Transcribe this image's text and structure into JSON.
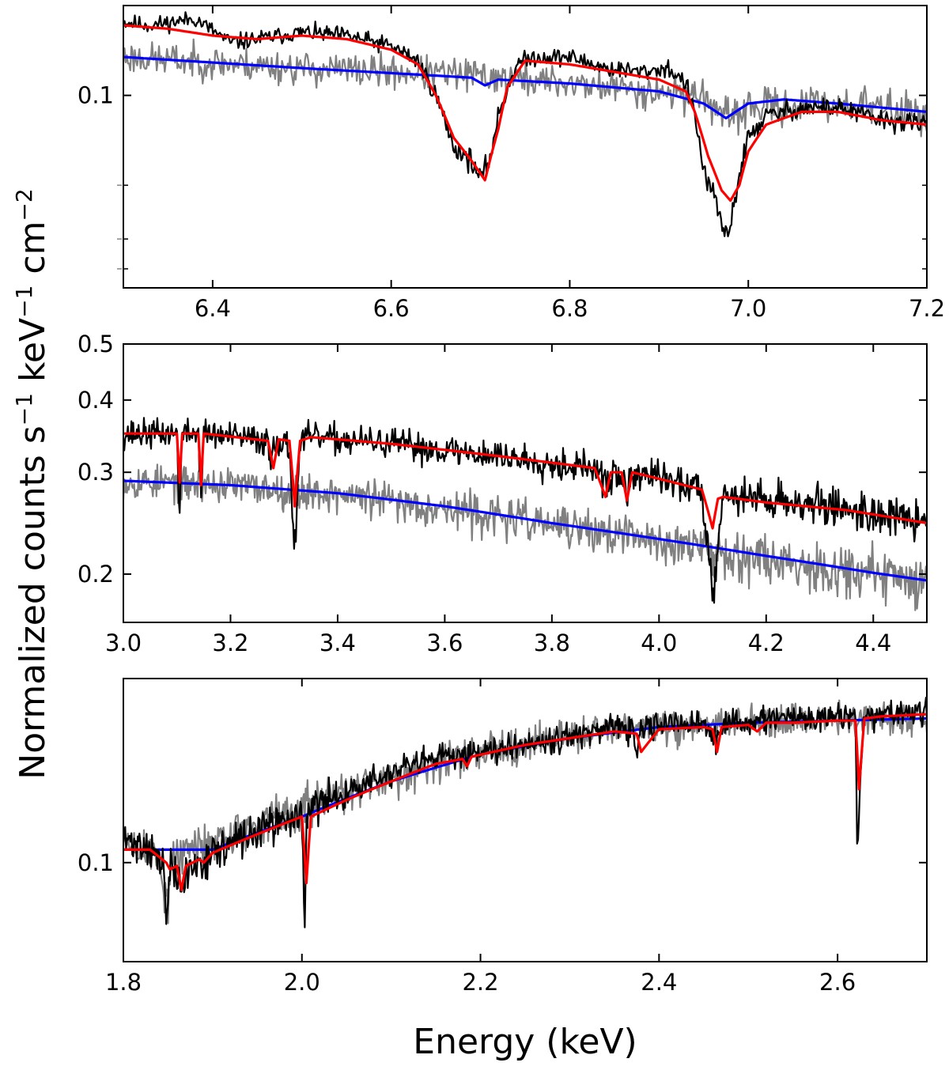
{
  "chart_data": {
    "common_ylabel_parts": [
      "Normalized counts s",
      "−1",
      " keV",
      "−1",
      " cm",
      "−2"
    ],
    "common_xlabel": "Energy (keV)",
    "legend": "none",
    "series_colors": {
      "data_observation_1": "#000000",
      "data_observation_2": "#808080",
      "model_red": "#ff0000",
      "model_blue": "#0000ff"
    },
    "panels": [
      {
        "type": "line",
        "xlim": [
          6.3,
          7.2
        ],
        "ylim": [
          0.062,
          0.125
        ],
        "yscale": "log",
        "xtick_labels": [
          "6.4",
          "6.6",
          "6.8",
          "7.0",
          "7.2"
        ],
        "xtick_values": [
          6.4,
          6.6,
          6.8,
          7.0,
          7.2
        ],
        "ytick_labels": [
          "0.1"
        ],
        "ytick_values": [
          0.1
        ],
        "ytick_unlabeled": [
          0.08,
          0.07,
          0.065
        ],
        "series": [
          {
            "name": "black data",
            "x": [
              6.3,
              6.33,
              6.38,
              6.42,
              6.45,
              6.5,
              6.55,
              6.6,
              6.63,
              6.65,
              6.67,
              6.69,
              6.7,
              6.71,
              6.72,
              6.74,
              6.76,
              6.8,
              6.84,
              6.88,
              6.91,
              6.93,
              6.94,
              6.95,
              6.96,
              6.97,
              6.975,
              6.98,
              6.99,
              7.0,
              7.02,
              7.06,
              7.1,
              7.15,
              7.2
            ],
            "y": [
              0.12,
              0.119,
              0.121,
              0.114,
              0.115,
              0.117,
              0.116,
              0.113,
              0.109,
              0.1,
              0.088,
              0.085,
              0.081,
              0.085,
              0.095,
              0.108,
              0.11,
              0.11,
              0.107,
              0.106,
              0.107,
              0.103,
              0.095,
              0.083,
              0.078,
              0.073,
              0.07,
              0.073,
              0.082,
              0.09,
              0.095,
              0.097,
              0.097,
              0.094,
              0.093
            ],
            "noise": 0.0012,
            "seed": 11,
            "n": 700
          },
          {
            "name": "grey data",
            "x": [
              6.3,
              6.5,
              6.7,
              6.95,
              6.975,
              7.0,
              7.1,
              7.2
            ],
            "y": [
              0.11,
              0.107,
              0.105,
              0.1,
              0.094,
              0.097,
              0.098,
              0.096
            ],
            "noise": 0.0022,
            "seed": 23,
            "n": 700
          },
          {
            "name": "red model",
            "x": [
              6.3,
              6.35,
              6.4,
              6.45,
              6.5,
              6.55,
              6.6,
              6.63,
              6.65,
              6.67,
              6.69,
              6.705,
              6.72,
              6.73,
              6.75,
              6.8,
              6.85,
              6.9,
              6.93,
              6.94,
              6.955,
              6.97,
              6.98,
              6.99,
              7.0,
              7.02,
              7.06,
              7.1,
              7.15,
              7.2
            ],
            "y": [
              0.119,
              0.118,
              0.116,
              0.115,
              0.116,
              0.115,
              0.112,
              0.108,
              0.1,
              0.09,
              0.085,
              0.081,
              0.092,
              0.102,
              0.109,
              0.108,
              0.106,
              0.104,
              0.101,
              0.096,
              0.086,
              0.079,
              0.077,
              0.08,
              0.087,
              0.093,
              0.096,
              0.096,
              0.094,
              0.093
            ],
            "noise": 0,
            "n": 0
          },
          {
            "name": "blue model",
            "x": [
              6.3,
              6.5,
              6.69,
              6.705,
              6.72,
              6.8,
              6.9,
              6.95,
              6.975,
              7.0,
              7.04,
              7.1,
              7.2
            ],
            "y": [
              0.11,
              0.107,
              0.1045,
              0.1025,
              0.104,
              0.103,
              0.101,
              0.098,
              0.0945,
              0.098,
              0.099,
              0.098,
              0.096
            ],
            "noise": 0,
            "n": 0
          }
        ]
      },
      {
        "type": "line",
        "xlim": [
          3.0,
          4.5
        ],
        "ylim": [
          0.165,
          0.5
        ],
        "yscale": "log",
        "xtick_labels": [
          "3.0",
          "3.2",
          "3.4",
          "3.6",
          "3.8",
          "4.0",
          "4.2",
          "4.4"
        ],
        "xtick_values": [
          3.0,
          3.2,
          3.4,
          3.6,
          3.8,
          4.0,
          4.2,
          4.4
        ],
        "ytick_labels": [
          "0.5",
          "0.4",
          "0.3",
          "0.2"
        ],
        "ytick_values": [
          0.5,
          0.4,
          0.3,
          0.2
        ],
        "ytick_unlabeled": [],
        "series": [
          {
            "name": "black data",
            "x": [
              3.0,
              3.1,
              3.105,
              3.11,
              3.14,
              3.145,
              3.15,
              3.27,
              3.275,
              3.28,
              3.31,
              3.32,
              3.33,
              3.35,
              3.5,
              3.7,
              3.88,
              3.9,
              3.92,
              3.94,
              3.96,
              4.08,
              4.1,
              4.12,
              4.2,
              4.35,
              4.5
            ],
            "y": [
              0.35,
              0.35,
              0.255,
              0.35,
              0.35,
              0.275,
              0.35,
              0.34,
              0.305,
              0.345,
              0.33,
              0.215,
              0.34,
              0.345,
              0.336,
              0.32,
              0.305,
              0.285,
              0.3,
              0.28,
              0.3,
              0.28,
              0.185,
              0.275,
              0.27,
              0.26,
              0.245
            ],
            "noise": 0.01,
            "seed": 37,
            "n": 900
          },
          {
            "name": "grey data",
            "x": [
              3.0,
              3.2,
              3.4,
              3.6,
              3.8,
              4.0,
              4.2,
              4.4,
              4.5
            ],
            "y": [
              0.29,
              0.285,
              0.275,
              0.26,
              0.243,
              0.228,
              0.213,
              0.2,
              0.195
            ],
            "noise": 0.01,
            "seed": 53,
            "n": 900
          },
          {
            "name": "red model",
            "x": [
              3.0,
              3.1,
              3.105,
              3.11,
              3.14,
              3.145,
              3.15,
              3.27,
              3.28,
              3.29,
              3.31,
              3.32,
              3.33,
              3.35,
              3.5,
              3.7,
              3.88,
              3.9,
              3.91,
              3.93,
              3.94,
              3.95,
              4.08,
              4.1,
              4.11,
              4.12,
              4.2,
              4.35,
              4.5
            ],
            "y": [
              0.35,
              0.35,
              0.288,
              0.35,
              0.35,
              0.285,
              0.35,
              0.34,
              0.305,
              0.342,
              0.34,
              0.262,
              0.34,
              0.345,
              0.336,
              0.32,
              0.305,
              0.272,
              0.3,
              0.3,
              0.268,
              0.3,
              0.28,
              0.24,
              0.27,
              0.272,
              0.266,
              0.258,
              0.245
            ],
            "noise": 0,
            "n": 0
          },
          {
            "name": "blue model",
            "x": [
              3.0,
              3.2,
              3.4,
              3.6,
              3.8,
              4.0,
              4.2,
              4.4,
              4.5
            ],
            "y": [
              0.29,
              0.285,
              0.276,
              0.262,
              0.245,
              0.23,
              0.215,
              0.201,
              0.195
            ],
            "noise": 0,
            "n": 0
          }
        ]
      },
      {
        "type": "line",
        "xlim": [
          1.8,
          2.7
        ],
        "ylim": [
          0.074,
          0.175
        ],
        "yscale": "log",
        "xtick_labels": [
          "1.8",
          "2.0",
          "2.2",
          "2.4",
          "2.6"
        ],
        "xtick_values": [
          1.8,
          2.0,
          2.2,
          2.4,
          2.6
        ],
        "ytick_labels": [
          "0.1"
        ],
        "ytick_values": [
          0.1
        ],
        "ytick_unlabeled": [],
        "series": [
          {
            "name": "black data",
            "x": [
              1.8,
              1.83,
              1.845,
              1.848,
              1.852,
              1.86,
              1.865,
              1.87,
              1.9,
              1.95,
              2.0,
              2.003,
              2.005,
              2.01,
              2.05,
              2.1,
              2.15,
              2.2,
              2.25,
              2.3,
              2.35,
              2.37,
              2.375,
              2.38,
              2.4,
              2.45,
              2.46,
              2.465,
              2.47,
              2.5,
              2.55,
              2.6,
              2.62,
              2.622,
              2.625,
              2.63,
              2.65,
              2.7
            ],
            "y": [
              0.107,
              0.105,
              0.098,
              0.084,
              0.098,
              0.096,
              0.091,
              0.097,
              0.103,
              0.11,
              0.116,
              0.079,
              0.114,
              0.118,
              0.124,
              0.131,
              0.137,
              0.141,
              0.144,
              0.147,
              0.15,
              0.15,
              0.138,
              0.15,
              0.152,
              0.153,
              0.146,
              0.143,
              0.152,
              0.154,
              0.155,
              0.156,
              0.156,
              0.104,
              0.123,
              0.156,
              0.157,
              0.158
            ],
            "noise": 0.003,
            "seed": 71,
            "n": 900
          },
          {
            "name": "grey data",
            "x": [
              1.8,
              1.84,
              1.848,
              1.856,
              1.9,
              2.0,
              2.1,
              2.2,
              2.3,
              2.4,
              2.5,
              2.6,
              2.7
            ],
            "y": [
              0.106,
              0.102,
              0.088,
              0.101,
              0.107,
              0.118,
              0.13,
              0.14,
              0.147,
              0.151,
              0.153,
              0.154,
              0.155
            ],
            "noise": 0.0038,
            "seed": 89,
            "n": 900
          },
          {
            "name": "red model",
            "x": [
              1.8,
              1.83,
              1.848,
              1.852,
              1.86,
              1.865,
              1.87,
              1.885,
              1.89,
              1.9,
              1.95,
              2.0,
              2.005,
              2.01,
              2.05,
              2.1,
              2.15,
              2.18,
              2.185,
              2.19,
              2.25,
              2.3,
              2.35,
              2.375,
              2.38,
              2.4,
              2.45,
              2.46,
              2.465,
              2.47,
              2.5,
              2.51,
              2.52,
              2.55,
              2.6,
              2.62,
              2.624,
              2.63,
              2.65,
              2.7
            ],
            "y": [
              0.104,
              0.104,
              0.1,
              0.098,
              0.099,
              0.092,
              0.099,
              0.101,
              0.1,
              0.103,
              0.109,
              0.115,
              0.094,
              0.115,
              0.121,
              0.128,
              0.135,
              0.137,
              0.134,
              0.138,
              0.143,
              0.146,
              0.149,
              0.148,
              0.14,
              0.15,
              0.151,
              0.15,
              0.14,
              0.151,
              0.152,
              0.149,
              0.153,
              0.153,
              0.154,
              0.154,
              0.125,
              0.155,
              0.156,
              0.157
            ],
            "noise": 0,
            "n": 0
          },
          {
            "name": "blue model",
            "x": [
              1.8,
              1.9,
              2.0,
              2.1,
              2.2,
              2.3,
              2.4,
              2.5,
              2.6,
              2.7
            ],
            "y": [
              0.104,
              0.104,
              0.115,
              0.128,
              0.139,
              0.146,
              0.151,
              0.153,
              0.154,
              0.155
            ],
            "noise": 0,
            "n": 0
          }
        ]
      }
    ]
  }
}
